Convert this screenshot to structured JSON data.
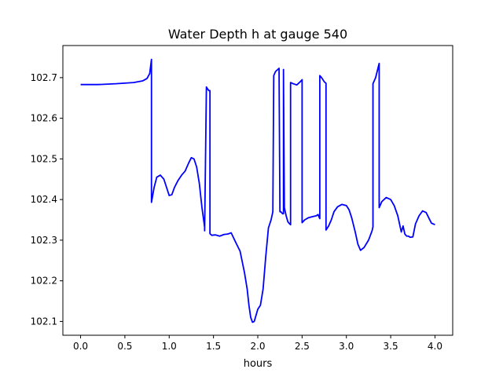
{
  "chart_data": {
    "type": "line",
    "title": "Water Depth h at gauge 540",
    "xlabel": "hours",
    "ylabel": "",
    "xlim": [
      -0.2,
      4.2
    ],
    "ylim": [
      102.066,
      102.779
    ],
    "xticks": [
      0.0,
      0.5,
      1.0,
      1.5,
      2.0,
      2.5,
      3.0,
      3.5,
      4.0
    ],
    "xtick_labels": [
      "0.0",
      "0.5",
      "1.0",
      "1.5",
      "2.0",
      "2.5",
      "3.0",
      "3.5",
      "4.0"
    ],
    "yticks": [
      102.1,
      102.2,
      102.3,
      102.4,
      102.5,
      102.6,
      102.7
    ],
    "ytick_labels": [
      "102.1",
      "102.2",
      "102.3",
      "102.4",
      "102.5",
      "102.6",
      "102.7"
    ],
    "grid": false,
    "series": [
      {
        "color": "#0000ff",
        "x": [
          0.0,
          0.2,
          0.4,
          0.6,
          0.7,
          0.75,
          0.78,
          0.8,
          0.8,
          0.83,
          0.86,
          0.9,
          0.94,
          0.97,
          1.0,
          1.03,
          1.06,
          1.1,
          1.14,
          1.18,
          1.22,
          1.25,
          1.28,
          1.31,
          1.34,
          1.37,
          1.4,
          1.4,
          1.42,
          1.44,
          1.45,
          1.46,
          1.46,
          1.48,
          1.52,
          1.57,
          1.62,
          1.66,
          1.7,
          1.75,
          1.8,
          1.85,
          1.88,
          1.9,
          1.92,
          1.94,
          1.96,
          1.98,
          2.0,
          2.03,
          2.06,
          2.09,
          2.12,
          2.15,
          2.17,
          2.18,
          2.2,
          2.24,
          2.25,
          2.26,
          2.28,
          2.29,
          2.29,
          2.3,
          2.32,
          2.34,
          2.36,
          2.37,
          2.37,
          2.4,
          2.44,
          2.48,
          2.5,
          2.5,
          2.53,
          2.57,
          2.62,
          2.66,
          2.68,
          2.7,
          2.7,
          2.72,
          2.75,
          2.77,
          2.77,
          2.8,
          2.83,
          2.86,
          2.9,
          2.95,
          3.0,
          3.03,
          3.06,
          3.1,
          3.13,
          3.16,
          3.2,
          3.25,
          3.29,
          3.3,
          3.3,
          3.33,
          3.37,
          3.37,
          3.4,
          3.45,
          3.5,
          3.54,
          3.58,
          3.6,
          3.62,
          3.64,
          3.66,
          3.68,
          3.7,
          3.72,
          3.75,
          3.78,
          3.82,
          3.86,
          3.9,
          3.93,
          3.96,
          4.0
        ],
        "y": [
          102.683,
          102.683,
          102.685,
          102.688,
          102.692,
          102.698,
          102.71,
          102.745,
          102.393,
          102.43,
          102.455,
          102.46,
          102.45,
          102.43,
          102.41,
          102.412,
          102.43,
          102.447,
          102.46,
          102.47,
          102.49,
          102.503,
          102.5,
          102.48,
          102.44,
          102.38,
          102.332,
          102.323,
          102.677,
          102.67,
          102.668,
          102.668,
          102.316,
          102.312,
          102.313,
          102.31,
          102.314,
          102.315,
          102.318,
          102.295,
          102.273,
          102.22,
          102.18,
          102.14,
          102.11,
          102.098,
          102.1,
          102.115,
          102.13,
          102.14,
          102.18,
          102.26,
          102.33,
          102.35,
          102.37,
          102.705,
          102.715,
          102.723,
          102.37,
          102.37,
          102.365,
          102.365,
          102.72,
          102.38,
          102.36,
          102.345,
          102.34,
          102.338,
          102.688,
          102.685,
          102.682,
          102.69,
          102.695,
          102.343,
          102.35,
          102.355,
          102.358,
          102.36,
          102.363,
          102.353,
          102.705,
          102.7,
          102.69,
          102.686,
          102.325,
          102.335,
          102.35,
          102.37,
          102.382,
          102.388,
          102.385,
          102.375,
          102.355,
          102.32,
          102.29,
          102.275,
          102.282,
          102.3,
          102.323,
          102.333,
          102.685,
          102.7,
          102.735,
          102.38,
          102.395,
          102.405,
          102.4,
          102.385,
          102.36,
          102.34,
          102.32,
          102.335,
          102.315,
          102.31,
          102.31,
          102.307,
          102.308,
          102.34,
          102.36,
          102.372,
          102.368,
          102.355,
          102.342,
          102.338
        ]
      }
    ]
  }
}
